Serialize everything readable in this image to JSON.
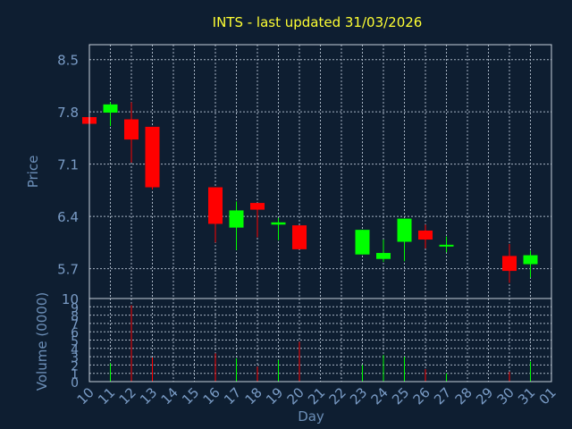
{
  "chart_data": {
    "type": "candlestick",
    "title": "INTS - last updated 31/03/2026",
    "xlabel": "Day",
    "price_panel": {
      "ylabel": "Price",
      "yticks": [
        5.7,
        6.4,
        7.1,
        7.8,
        8.5
      ],
      "ylim": [
        5.3,
        8.7
      ],
      "grid": true
    },
    "volume_panel": {
      "ylabel": "Volume (0000)",
      "yticks": [
        0,
        1,
        2,
        3,
        4,
        5,
        6,
        7,
        8,
        9,
        10
      ],
      "ylim": [
        0,
        10
      ],
      "grid": true
    },
    "x_ticks": [
      "10",
      "11",
      "12",
      "13",
      "14",
      "15",
      "16",
      "17",
      "18",
      "19",
      "20",
      "21",
      "22",
      "23",
      "24",
      "25",
      "26",
      "27",
      "28",
      "29",
      "30",
      "31",
      "01"
    ],
    "colors": {
      "up": "#00ff00",
      "down": "#ff0000"
    },
    "candles": [
      {
        "day": "10",
        "open": 7.73,
        "close": 7.64,
        "high": 7.73,
        "low": 7.64,
        "volume": 0
      },
      {
        "day": "11",
        "open": 7.79,
        "close": 7.9,
        "high": 7.93,
        "low": 7.61,
        "volume": 2.2
      },
      {
        "day": "12",
        "open": 7.7,
        "close": 7.43,
        "high": 7.93,
        "low": 7.12,
        "volume": 9.2
      },
      {
        "day": "13",
        "open": 7.6,
        "close": 6.79,
        "high": 7.6,
        "low": 6.76,
        "volume": 2.9
      },
      {
        "day": "16",
        "open": 6.79,
        "close": 6.3,
        "high": 6.79,
        "low": 6.05,
        "volume": 3.4
      },
      {
        "day": "17",
        "open": 6.25,
        "close": 6.48,
        "high": 6.6,
        "low": 5.95,
        "volume": 2.8
      },
      {
        "day": "18",
        "open": 6.58,
        "close": 6.49,
        "high": 6.58,
        "low": 6.12,
        "volume": 1.8
      },
      {
        "day": "19",
        "open": 6.29,
        "close": 6.32,
        "high": 6.38,
        "low": 6.08,
        "volume": 2.6
      },
      {
        "day": "20",
        "open": 6.28,
        "close": 5.96,
        "high": 6.28,
        "low": 5.96,
        "volume": 4.8
      },
      {
        "day": "23",
        "open": 5.89,
        "close": 6.22,
        "high": 6.22,
        "low": 5.89,
        "volume": 2.0
      },
      {
        "day": "24",
        "open": 5.83,
        "close": 5.91,
        "high": 6.09,
        "low": 5.79,
        "volume": 3.2
      },
      {
        "day": "25",
        "open": 6.06,
        "close": 6.37,
        "high": 6.37,
        "low": 5.8,
        "volume": 3.0
      },
      {
        "day": "26",
        "open": 6.21,
        "close": 6.09,
        "high": 6.29,
        "low": 5.97,
        "volume": 1.5
      },
      {
        "day": "27",
        "open": 6.01,
        "close": 6.02,
        "high": 6.13,
        "low": 5.92,
        "volume": 1.0
      },
      {
        "day": "30",
        "open": 5.87,
        "close": 5.67,
        "high": 6.03,
        "low": 5.51,
        "volume": 1.2
      },
      {
        "day": "31",
        "open": 5.76,
        "close": 5.88,
        "high": 5.94,
        "low": 5.58,
        "volume": 2.4
      }
    ]
  }
}
